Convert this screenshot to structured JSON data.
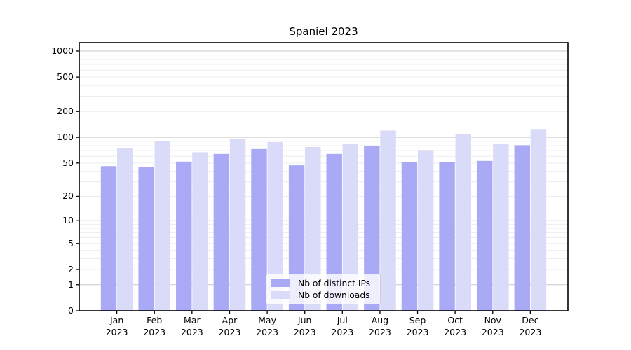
{
  "chart_data": {
    "type": "bar",
    "title": "Spaniel 2023",
    "categories": [
      "Jan 2023",
      "Feb 2023",
      "Mar 2023",
      "Apr 2023",
      "May 2023",
      "Jun 2023",
      "Jul 2023",
      "Aug 2023",
      "Sep 2023",
      "Oct 2023",
      "Nov 2023",
      "Dec 2023"
    ],
    "series": [
      {
        "name": "Nb of distinct IPs",
        "color": "#a9a9f6",
        "values": [
          46,
          45,
          52,
          64,
          73,
          47,
          64,
          79,
          51,
          51,
          53,
          81
        ]
      },
      {
        "name": "Nb of downloads",
        "color": "#dadaf9",
        "values": [
          75,
          90,
          67,
          96,
          88,
          77,
          84,
          120,
          71,
          109,
          84,
          125
        ]
      }
    ],
    "yscale": "log1p",
    "yticks": [
      0,
      1,
      2,
      5,
      10,
      20,
      50,
      100,
      200,
      500,
      1000
    ],
    "ylim": [
      0,
      1250
    ],
    "xlabel": "",
    "ylabel": "",
    "grid": true,
    "grid_major_color": "#c9c9c9",
    "grid_minor_color": "#ededed",
    "legend_position": "lower center"
  }
}
